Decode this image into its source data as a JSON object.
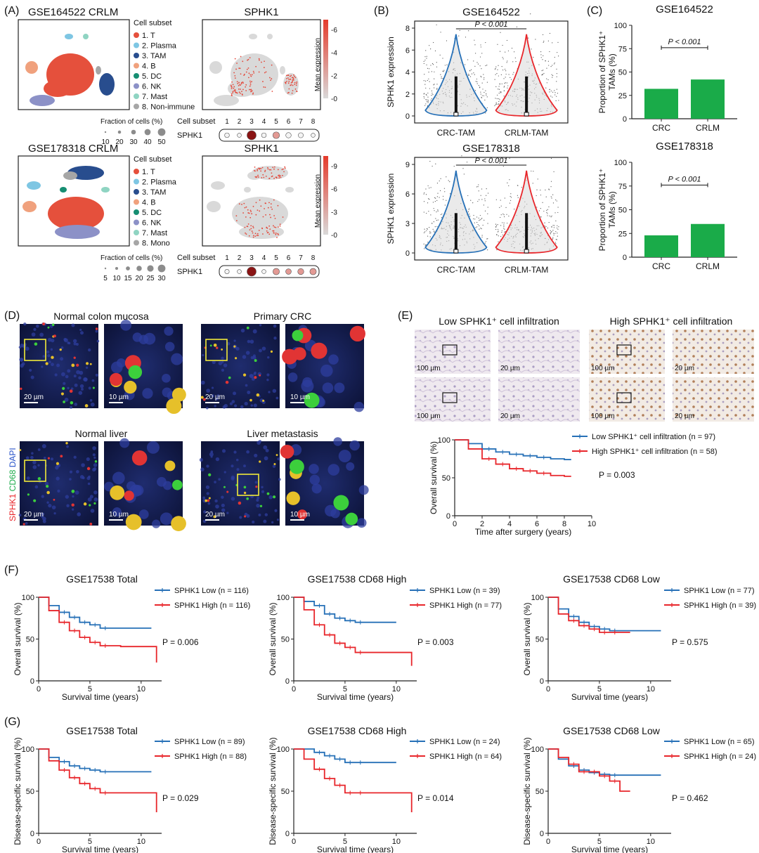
{
  "colors": {
    "blue": "#2670b7",
    "red": "#e8262b",
    "green": "#1aab49",
    "umap_red": "#e5503c",
    "tam_blue": "#284d8e",
    "pink": "#f08a8a"
  },
  "A": {
    "panel": "(A)",
    "top": {
      "title": "GSE164522 CRLM",
      "feature": "SPHK1",
      "legend_title": "Cell subset",
      "legend": [
        "1. T",
        "2. Plasma",
        "3. TAM",
        "4. B",
        "5. DC",
        "6. NK",
        "7. Mast",
        "8. Non-immune"
      ],
      "legend_colors": [
        "#e5503c",
        "#7ec6e3",
        "#284d8e",
        "#f0a17d",
        "#168e72",
        "#8c91c7",
        "#8fd4c2",
        "#a6a6a6"
      ],
      "colorbar_label": "Mean expression",
      "colorbar_ticks": [
        "6",
        "4",
        "2",
        "0"
      ],
      "frac_title": "Fraction of cells (%)",
      "frac_ticks": [
        "10",
        "20",
        "30",
        "40",
        "50"
      ],
      "dot_header": "Cell subset",
      "dot_cols": [
        "1",
        "2",
        "3",
        "4",
        "5",
        "6",
        "7",
        "8"
      ],
      "dot_row": "SPHK1",
      "dot_fractions": [
        8,
        5,
        50,
        8,
        22,
        12,
        10,
        5
      ],
      "dot_expr": [
        0.1,
        0.1,
        6,
        0.1,
        2,
        0.5,
        0.3,
        0.1
      ]
    },
    "bottom": {
      "title": "GSE178318 CRLM",
      "feature": "SPHK1",
      "legend_title": "Cell subset",
      "legend": [
        "1. T",
        "2. Plasma",
        "3. TAM",
        "4. B",
        "5. DC",
        "6. NK",
        "7. Mast",
        "8. Mono"
      ],
      "legend_colors": [
        "#e5503c",
        "#7ec6e3",
        "#284d8e",
        "#f0a17d",
        "#168e72",
        "#8c91c7",
        "#8fd4c2",
        "#a6a6a6"
      ],
      "colorbar_label": "Mean expression",
      "colorbar_ticks": [
        "9",
        "6",
        "3",
        "0"
      ],
      "frac_title": "Fraction of cells (%)",
      "frac_ticks": [
        "5",
        "10",
        "15",
        "20",
        "25",
        "30"
      ],
      "dot_header": "Cell subset",
      "dot_cols": [
        "1",
        "2",
        "3",
        "4",
        "5",
        "6",
        "7",
        "8"
      ],
      "dot_row": "SPHK1",
      "dot_fractions": [
        4,
        3,
        30,
        3,
        12,
        8,
        10,
        12
      ],
      "dot_expr": [
        0.1,
        0.1,
        9,
        0.1,
        4,
        2,
        3,
        4
      ]
    }
  },
  "B": {
    "panel": "(B)",
    "p_text": "P < 0.001",
    "plots": [
      {
        "title": "GSE164522",
        "ylabel": "SPHK1 expression",
        "yticks": [
          "0",
          "2",
          "4",
          "6",
          "8"
        ],
        "ymax": 8,
        "groups": [
          "CRC-TAM",
          "CRLM-TAM"
        ]
      },
      {
        "title": "GSE178318",
        "ylabel": "SPHK1 expression",
        "yticks": [
          "0",
          "3",
          "6",
          "9"
        ],
        "ymax": 9,
        "groups": [
          "CRC-TAM",
          "CRLM-TAM"
        ]
      }
    ]
  },
  "C": {
    "panel": "(C)",
    "p_text": "P < 0.001",
    "plots": [
      {
        "title": "GSE164522",
        "ylabel_line1": "Proportion of SPHK1⁺",
        "ylabel_line2": "TAMs (%)",
        "yticks": [
          "0",
          "25",
          "50",
          "75",
          "100"
        ],
        "categories": [
          "CRC",
          "CRLM"
        ],
        "values": [
          32,
          42
        ]
      },
      {
        "title": "GSE178318",
        "ylabel_line1": "Proportion of SPHK1⁺",
        "ylabel_line2": "TAMs (%)",
        "yticks": [
          "0",
          "25",
          "50",
          "75",
          "100"
        ],
        "categories": [
          "CRC",
          "CRLM"
        ],
        "values": [
          23,
          35
        ]
      }
    ]
  },
  "D": {
    "panel": "(D)",
    "titles": [
      "Normal colon mucosa",
      "Primary CRC",
      "Normal liver",
      "Liver metastasis"
    ],
    "scale_main": "20 µm",
    "scale_zoom": "10 µm",
    "stain_red": "SPHK1",
    "stain_green": "CD68",
    "stain_blue": "DAPI"
  },
  "E": {
    "panel": "(E)",
    "title_low": "Low SPHK1⁺ cell infiltration",
    "title_high": "High SPHK1⁺ cell infiltration",
    "scale_main": "100 µm",
    "scale_zoom": "20 µm",
    "legend": [
      {
        "label": "Low SPHK1⁺ cell infiltration (n = 97)"
      },
      {
        "label": "High SPHK1⁺ cell infiltration (n = 58)"
      }
    ],
    "p_text": "P = 0.003",
    "ylabel": "Overall survival (%)",
    "xlabel": "Time after surgery (years)",
    "xticks": [
      "0",
      "2",
      "4",
      "6",
      "8",
      "10"
    ],
    "yticks": [
      "0",
      "50",
      "100"
    ],
    "chart_data": {
      "type": "line",
      "x": [
        0,
        1,
        2,
        3,
        4,
        5,
        6,
        7,
        8,
        8.5
      ],
      "series": [
        {
          "name": "Low SPHK1⁺ cell infiltration",
          "values": [
            100,
            95,
            88,
            84,
            81,
            79,
            77,
            75,
            74,
            74
          ]
        },
        {
          "name": "High SPHK1⁺ cell infiltration",
          "values": [
            100,
            88,
            75,
            68,
            62,
            59,
            56,
            53,
            52,
            52
          ]
        }
      ],
      "xlim": [
        0,
        10
      ],
      "ylim": [
        0,
        100
      ]
    }
  },
  "F": {
    "panel": "(F)",
    "ylabel": "Overall survival (%)",
    "xlabel": "Survival time (years)",
    "xticks": [
      "0",
      "5",
      "10"
    ],
    "yticks": [
      "0",
      "50",
      "100"
    ],
    "plots": [
      {
        "title": "GSE17538 Total",
        "legend": [
          "SPHK1 Low (n = 116)",
          "SPHK1 High (n = 116)"
        ],
        "p_text": "P = 0.006",
        "chart_data": {
          "type": "line",
          "x": [
            0,
            1,
            2,
            3,
            4,
            5,
            6,
            8,
            10,
            11,
            11.5
          ],
          "xlim": [
            0,
            12
          ],
          "ylim": [
            0,
            100
          ],
          "series": [
            {
              "name": "SPHK1 Low",
              "values": [
                100,
                90,
                82,
                76,
                70,
                67,
                63,
                63,
                63,
                63,
                null
              ]
            },
            {
              "name": "SPHK1 High",
              "values": [
                100,
                84,
                70,
                60,
                52,
                46,
                42,
                41,
                41,
                41,
                22
              ]
            }
          ]
        }
      },
      {
        "title": "GSE17538 CD68 High",
        "legend": [
          "SPHK1 Low (n = 39)",
          "SPHK1 High (n = 77)"
        ],
        "p_text": "P = 0.003",
        "chart_data": {
          "type": "line",
          "x": [
            0,
            1,
            2,
            3,
            4,
            5,
            6,
            8,
            10,
            11,
            11.5
          ],
          "xlim": [
            0,
            12
          ],
          "ylim": [
            0,
            100
          ],
          "series": [
            {
              "name": "SPHK1 Low",
              "values": [
                100,
                95,
                90,
                80,
                75,
                72,
                70,
                70,
                70,
                null,
                null
              ]
            },
            {
              "name": "SPHK1 High",
              "values": [
                100,
                85,
                67,
                55,
                45,
                40,
                34,
                34,
                34,
                34,
                18
              ]
            }
          ]
        }
      },
      {
        "title": "GSE17538 CD68 Low",
        "legend": [
          "SPHK1 Low (n = 77)",
          "SPHK1 High (n = 39)"
        ],
        "p_text": "P = 0.575",
        "chart_data": {
          "type": "line",
          "x": [
            0,
            1,
            2,
            3,
            4,
            5,
            6,
            8,
            10,
            11
          ],
          "xlim": [
            0,
            12
          ],
          "ylim": [
            0,
            100
          ],
          "series": [
            {
              "name": "SPHK1 Low",
              "values": [
                100,
                86,
                77,
                70,
                65,
                62,
                60,
                60,
                60,
                60
              ]
            },
            {
              "name": "SPHK1 High",
              "values": [
                100,
                80,
                72,
                66,
                62,
                58,
                58,
                58,
                null,
                null
              ]
            }
          ]
        }
      }
    ]
  },
  "G": {
    "panel": "(G)",
    "ylabel": "Disease-specific survival (%)",
    "xlabel": "Survival time (years)",
    "xticks": [
      "0",
      "5",
      "10"
    ],
    "yticks": [
      "0",
      "50",
      "100"
    ],
    "plots": [
      {
        "title": "GSE17538 Total",
        "legend": [
          "SPHK1 Low (n = 89)",
          "SPHK1 High (n = 88)"
        ],
        "p_text": "P = 0.029",
        "chart_data": {
          "type": "line",
          "x": [
            0,
            1,
            2,
            3,
            4,
            5,
            6,
            8,
            10,
            11,
            11.5
          ],
          "xlim": [
            0,
            12
          ],
          "ylim": [
            0,
            100
          ],
          "series": [
            {
              "name": "SPHK1 Low",
              "values": [
                100,
                90,
                85,
                80,
                77,
                75,
                73,
                73,
                73,
                73,
                null
              ]
            },
            {
              "name": "SPHK1 High",
              "values": [
                100,
                86,
                75,
                66,
                59,
                53,
                48,
                48,
                48,
                48,
                25
              ]
            }
          ]
        }
      },
      {
        "title": "GSE17538 CD68 High",
        "legend": [
          "SPHK1 Low (n = 24)",
          "SPHK1 High (n = 64)"
        ],
        "p_text": "P = 0.014",
        "chart_data": {
          "type": "line",
          "x": [
            0,
            1,
            2,
            3,
            4,
            5,
            6,
            8,
            10,
            11,
            11.5
          ],
          "xlim": [
            0,
            12
          ],
          "ylim": [
            0,
            100
          ],
          "series": [
            {
              "name": "SPHK1 Low",
              "values": [
                100,
                100,
                96,
                92,
                88,
                84,
                84,
                84,
                84,
                null,
                null
              ]
            },
            {
              "name": "SPHK1 High",
              "values": [
                100,
                88,
                76,
                65,
                57,
                48,
                48,
                48,
                48,
                48,
                25
              ]
            }
          ]
        }
      },
      {
        "title": "GSE17538 CD68 Low",
        "legend": [
          "SPHK1 Low (n = 65)",
          "SPHK1 High (n = 24)"
        ],
        "p_text": "P = 0.462",
        "chart_data": {
          "type": "line",
          "x": [
            0,
            1,
            2,
            3,
            4,
            5,
            6,
            7,
            8,
            10,
            11
          ],
          "xlim": [
            0,
            12
          ],
          "ylim": [
            0,
            100
          ],
          "series": [
            {
              "name": "SPHK1 Low",
              "values": [
                100,
                88,
                80,
                75,
                72,
                70,
                69,
                69,
                69,
                69,
                69
              ]
            },
            {
              "name": "SPHK1 High",
              "values": [
                100,
                90,
                82,
                73,
                73,
                68,
                62,
                50,
                50,
                null,
                null
              ]
            }
          ]
        }
      }
    ]
  }
}
